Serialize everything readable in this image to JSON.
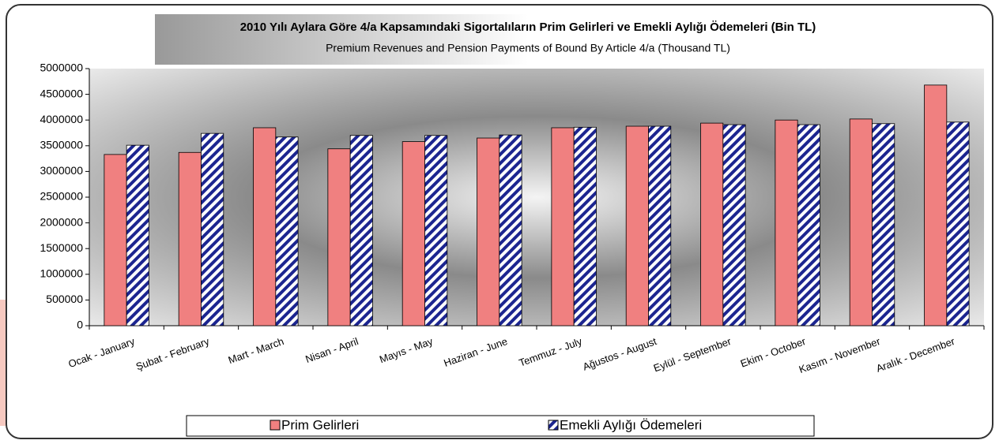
{
  "chart_data": {
    "type": "bar",
    "title": "2010 Yılı Aylara Göre 4/a Kapsamındaki Sigortalıların Prim Gelirleri ve Emekli Aylığı Ödemeleri (Bin TL)",
    "subtitle": "Premium Revenues and Pension Payments of Bound By Article 4/a (Thousand TL)",
    "categories": [
      "Ocak - January",
      "Şubat - February",
      "Mart - March",
      "Nisan - April",
      "Mayıs - May",
      "Haziran - June",
      "Temmuz - July",
      "Ağustos - August",
      "Eylül - September",
      "Ekim - October",
      "Kasım - November",
      "Aralık - December"
    ],
    "series": [
      {
        "name": "Prim Gelirleri",
        "color": "#f08080",
        "values": [
          3330000,
          3370000,
          3850000,
          3440000,
          3580000,
          3650000,
          3850000,
          3880000,
          3940000,
          4000000,
          4020000,
          4680000
        ]
      },
      {
        "name": "Emekli Aylığı Ödemeleri",
        "color": "#1c2590",
        "hatch": true,
        "values": [
          3510000,
          3740000,
          3670000,
          3700000,
          3700000,
          3710000,
          3860000,
          3880000,
          3910000,
          3910000,
          3930000,
          3960000
        ]
      }
    ],
    "ylim": [
      0,
      5000000
    ],
    "yticks": [
      0,
      500000,
      1000000,
      1500000,
      2000000,
      2500000,
      3000000,
      3500000,
      4000000,
      4500000,
      5000000
    ],
    "legend": "bottom"
  }
}
